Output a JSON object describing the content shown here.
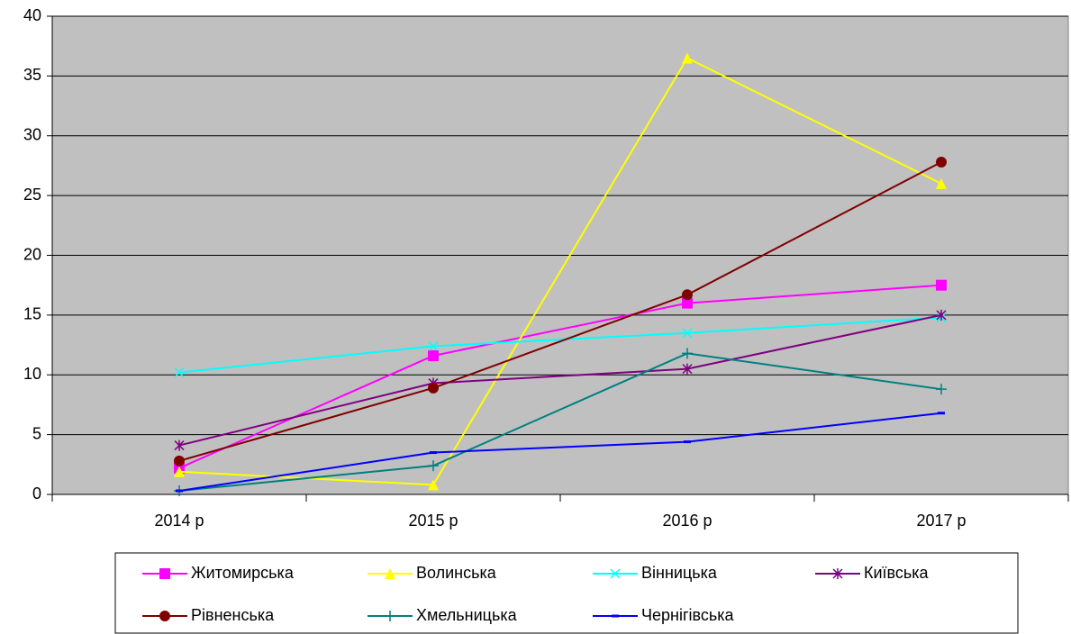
{
  "chart_data": {
    "type": "line",
    "categories": [
      "2014 р",
      "2015 р",
      "2016 р",
      "2017 р"
    ],
    "series": [
      {
        "name": "Житомирська",
        "color": "#ff00ff",
        "marker": "square",
        "values": [
          2.2,
          11.6,
          16,
          17.5
        ]
      },
      {
        "name": "Волинська",
        "color": "#ffff00",
        "marker": "triangle",
        "values": [
          1.9,
          0.8,
          36.5,
          26
        ]
      },
      {
        "name": "Вінницька",
        "color": "#00ffff",
        "marker": "x",
        "values": [
          10.2,
          12.4,
          13.5,
          14.8
        ]
      },
      {
        "name": "Київська",
        "color": "#800080",
        "marker": "star",
        "values": [
          4.1,
          9.3,
          10.5,
          15
        ]
      },
      {
        "name": "Рівненська",
        "color": "#800000",
        "marker": "circle",
        "values": [
          2.8,
          8.9,
          16.7,
          27.8
        ]
      },
      {
        "name": "Хмельницька",
        "color": "#008080",
        "marker": "plus",
        "values": [
          0.3,
          2.4,
          11.8,
          8.8
        ]
      },
      {
        "name": "Чернігівська",
        "color": "#0000ff",
        "marker": "dash",
        "values": [
          0.3,
          3.5,
          4.4,
          6.8
        ]
      }
    ],
    "ylim": [
      0,
      40
    ],
    "yticks": [
      0,
      5,
      10,
      15,
      20,
      25,
      30,
      35,
      40
    ],
    "grid": true,
    "legend": "bottom"
  }
}
